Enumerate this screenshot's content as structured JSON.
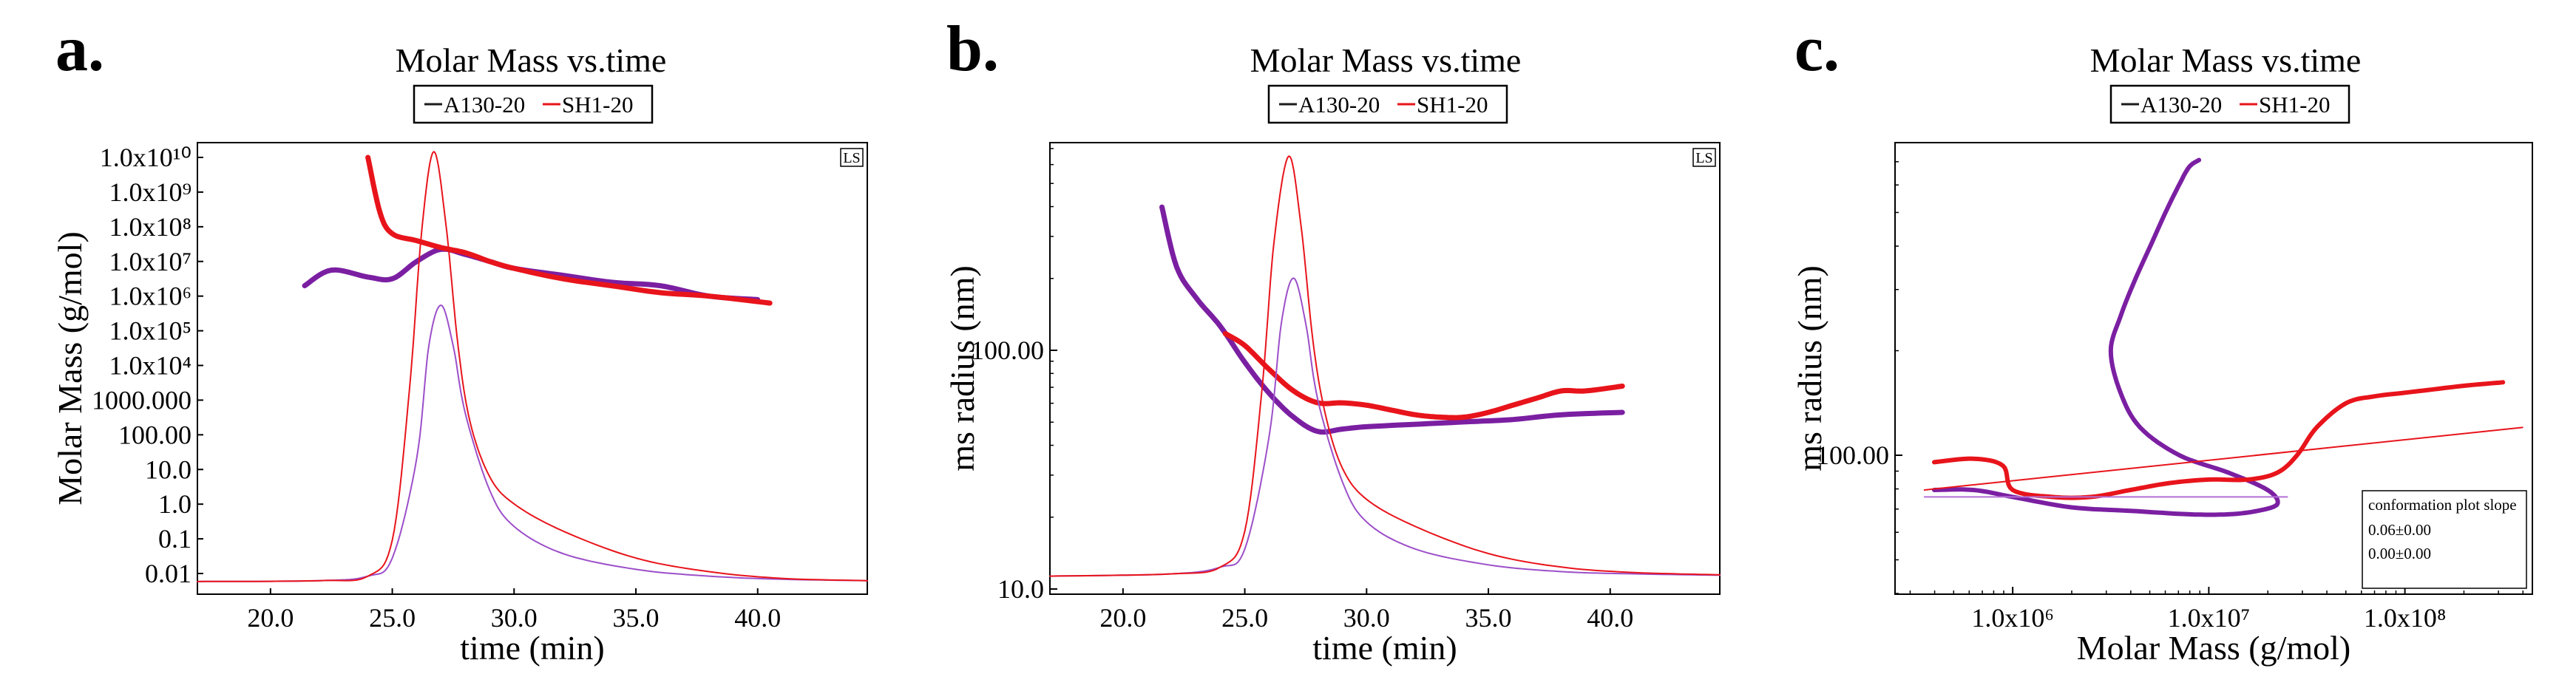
{
  "chart_data": [
    {
      "panel": "a.",
      "type": "line",
      "title": "Molar Mass vs.time",
      "xlabel": "time (min)",
      "ylabel": "Molar Mass (g/mol)",
      "badge": "LS",
      "xlim": [
        17,
        44.5
      ],
      "x_ticks": [
        "20.0",
        "25.0",
        "30.0",
        "35.0",
        "40.0"
      ],
      "y_ticks": [
        "1.0x10¹⁰",
        "1.0x10⁹",
        "1.0x10⁸",
        "1.0x10⁷",
        "1.0x10⁶",
        "1.0x10⁵",
        "1.0x10⁴",
        "1000.000",
        "100.00",
        "10.0",
        "1.0",
        "0.1",
        "0.01"
      ],
      "legend": [
        "A130-20",
        "SH1-20"
      ],
      "series": [
        {
          "name": "A130-20 molar mass",
          "color": "#7B1FA2",
          "x": [
            21.4,
            22.5,
            24.0,
            25.0,
            26.0,
            27.0,
            28.0,
            29.0,
            30.0,
            32.0,
            34.0,
            36.0,
            38.0,
            40.0
          ],
          "log10_values": [
            6.3,
            6.75,
            6.55,
            6.5,
            7.0,
            7.35,
            7.2,
            7.0,
            6.8,
            6.6,
            6.4,
            6.3,
            6.0,
            5.9
          ]
        },
        {
          "name": "SH1-20 molar mass",
          "color": "#E8141B",
          "x": [
            24.0,
            24.5,
            25.0,
            26.0,
            27.0,
            28.0,
            29.0,
            30.0,
            32.0,
            34.0,
            36.0,
            38.0,
            40.5
          ],
          "log10_values": [
            10.0,
            8.4,
            7.8,
            7.6,
            7.4,
            7.25,
            7.0,
            6.8,
            6.5,
            6.3,
            6.1,
            6.0,
            5.8
          ]
        },
        {
          "name": "A130-20 detector",
          "color": "#9C4FC9",
          "x": [
            17,
            22,
            24,
            25,
            26,
            26.5,
            27,
            27.5,
            28,
            29,
            30,
            32,
            35,
            38,
            41,
            44.5
          ],
          "y_frac": [
            0.028,
            0.03,
            0.04,
            0.08,
            0.3,
            0.55,
            0.64,
            0.55,
            0.4,
            0.23,
            0.15,
            0.09,
            0.055,
            0.04,
            0.033,
            0.03
          ]
        },
        {
          "name": "SH1-20 detector",
          "color": "#E8141B",
          "x": [
            17,
            22,
            24,
            25,
            25.7,
            26.2,
            26.7,
            27.2,
            27.7,
            28.2,
            29,
            30,
            32,
            35,
            38,
            41,
            44.5
          ],
          "y_frac": [
            0.028,
            0.03,
            0.04,
            0.12,
            0.45,
            0.8,
            0.98,
            0.82,
            0.55,
            0.38,
            0.26,
            0.2,
            0.14,
            0.08,
            0.05,
            0.035,
            0.03
          ]
        }
      ]
    },
    {
      "panel": "b.",
      "type": "line",
      "title": "Molar Mass vs.time",
      "xlabel": "time (min)",
      "ylabel": "ms radius (nm)",
      "badge": "LS",
      "xlim": [
        17,
        44.5
      ],
      "ylim_log10": [
        1.0,
        2.87
      ],
      "x_ticks": [
        "20.0",
        "25.0",
        "30.0",
        "35.0",
        "40.0"
      ],
      "y_ticks": [
        "100.00",
        "10.0"
      ],
      "legend": [
        "A130-20",
        "SH1-20"
      ],
      "series": [
        {
          "name": "A130-20 radius",
          "color": "#7B1FA2",
          "x": [
            21.6,
            22.2,
            23.0,
            24.0,
            25.0,
            26.0,
            27.0,
            28.0,
            29.0,
            30.0,
            32.0,
            34.0,
            36.0,
            38.0,
            40.5
          ],
          "log10_values": [
            2.6,
            2.35,
            2.22,
            2.1,
            1.95,
            1.82,
            1.72,
            1.66,
            1.67,
            1.68,
            1.69,
            1.7,
            1.71,
            1.73,
            1.74
          ]
        },
        {
          "name": "SH1-20 radius",
          "color": "#E8141B",
          "x": [
            24.2,
            25.0,
            26.0,
            27.0,
            28.0,
            29.0,
            30.0,
            31.0,
            32.0,
            33.0,
            34.0,
            35.0,
            36.0,
            37.0,
            38.0,
            39.0,
            40.5
          ],
          "log10_values": [
            2.07,
            2.02,
            1.92,
            1.83,
            1.78,
            1.78,
            1.77,
            1.75,
            1.73,
            1.72,
            1.72,
            1.74,
            1.77,
            1.8,
            1.83,
            1.83,
            1.85
          ]
        },
        {
          "name": "A130-20 detector",
          "color": "#9C4FC9",
          "x": [
            17,
            22,
            24,
            25,
            26,
            26.5,
            27,
            27.5,
            28,
            29,
            30,
            32,
            35,
            38,
            41,
            44.5
          ],
          "y_frac": [
            0.04,
            0.045,
            0.06,
            0.1,
            0.35,
            0.6,
            0.7,
            0.6,
            0.43,
            0.25,
            0.16,
            0.1,
            0.065,
            0.05,
            0.045,
            0.042
          ]
        },
        {
          "name": "SH1-20 detector",
          "color": "#E8141B",
          "x": [
            17,
            22,
            24,
            25,
            25.7,
            26.2,
            26.8,
            27.3,
            27.8,
            28.3,
            29,
            30,
            32,
            35,
            38,
            41,
            44.5
          ],
          "y_frac": [
            0.04,
            0.045,
            0.06,
            0.14,
            0.45,
            0.78,
            0.97,
            0.82,
            0.56,
            0.4,
            0.28,
            0.21,
            0.15,
            0.09,
            0.06,
            0.048,
            0.043
          ]
        }
      ]
    },
    {
      "panel": "c.",
      "type": "scatter",
      "title": "Molar Mass vs.time",
      "xlabel": "Molar Mass (g/mol)",
      "ylabel": "ms radius (nm)",
      "xlim_log10": [
        5.4,
        8.65
      ],
      "ylim_log10": [
        1.6,
        2.9
      ],
      "x_ticks": [
        "1.0x10⁶",
        "1.0x10⁷",
        "1.0x10⁸"
      ],
      "y_ticks": [
        "100.00"
      ],
      "legend": [
        "A130-20",
        "SH1-20"
      ],
      "annotation": {
        "title": "conformation plot slope",
        "lines": [
          "0.06±0.00",
          "0.00±0.00"
        ]
      },
      "series": [
        {
          "name": "A130-20",
          "color": "#7B1FA2",
          "log10_x": [
            5.6,
            5.8,
            6.0,
            6.3,
            6.6,
            6.9,
            7.1,
            7.25,
            7.35,
            7.3,
            7.1,
            6.85,
            6.65,
            6.55,
            6.5,
            6.55,
            6.62,
            6.7,
            6.78,
            6.85,
            6.9,
            6.95
          ],
          "log10_y": [
            1.9,
            1.9,
            1.88,
            1.85,
            1.84,
            1.83,
            1.83,
            1.84,
            1.86,
            1.9,
            1.95,
            2.0,
            2.08,
            2.18,
            2.3,
            2.4,
            2.5,
            2.6,
            2.7,
            2.78,
            2.83,
            2.85
          ]
        },
        {
          "name": "SH1-20",
          "color": "#E8141B",
          "log10_x": [
            5.6,
            5.8,
            5.95,
            6.0,
            6.2,
            6.4,
            6.6,
            6.8,
            7.0,
            7.2,
            7.35,
            7.45,
            7.55,
            7.7,
            7.85,
            8.0,
            8.15,
            8.3,
            8.5
          ],
          "log10_y": [
            1.98,
            1.99,
            1.97,
            1.9,
            1.88,
            1.88,
            1.9,
            1.92,
            1.93,
            1.93,
            1.95,
            2.0,
            2.08,
            2.15,
            2.17,
            2.18,
            2.19,
            2.2,
            2.21
          ]
        },
        {
          "name": "A130-20 fit",
          "color": "#B36FD6",
          "log10_x": [
            5.55,
            7.4
          ],
          "log10_y": [
            1.88,
            1.88
          ]
        },
        {
          "name": "SH1-20 fit",
          "color": "#E8141B",
          "log10_x": [
            5.55,
            8.6
          ],
          "log10_y": [
            1.9,
            2.08
          ]
        }
      ]
    }
  ]
}
